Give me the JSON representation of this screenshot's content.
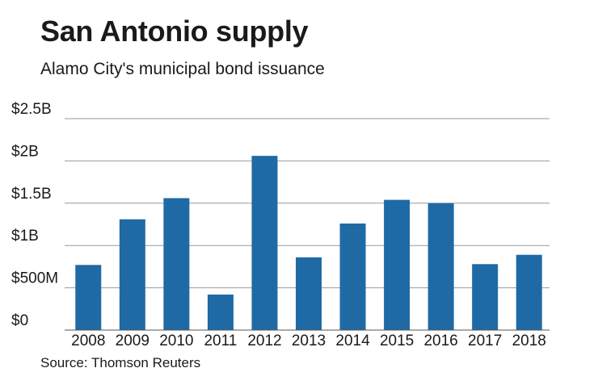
{
  "title": "San Antonio supply",
  "subtitle": "Alamo City's municipal bond issuance",
  "source": "Source: Thomson Reuters",
  "colors": {
    "bar": "#1f6aa5",
    "grid": "#9a9a9a",
    "axis": "#555555"
  },
  "chart_data": {
    "type": "bar",
    "title": "San Antonio supply",
    "subtitle": "Alamo City's municipal bond issuance",
    "xlabel": "",
    "ylabel": "",
    "categories": [
      "2008",
      "2009",
      "2010",
      "2011",
      "2012",
      "2013",
      "2014",
      "2015",
      "2016",
      "2017",
      "2018"
    ],
    "values": [
      0.77,
      1.31,
      1.56,
      0.42,
      2.06,
      0.86,
      1.26,
      1.54,
      1.5,
      0.78,
      0.89
    ],
    "value_unit": "billions of dollars",
    "ylim": [
      0,
      2.5
    ],
    "yticks": [
      0,
      0.5,
      1,
      1.5,
      2,
      2.5
    ],
    "ytick_labels": [
      "$0",
      "$500M",
      "$1B",
      "$1.5B",
      "$2B",
      "$2.5B"
    ],
    "grid": true,
    "legend": "none"
  }
}
